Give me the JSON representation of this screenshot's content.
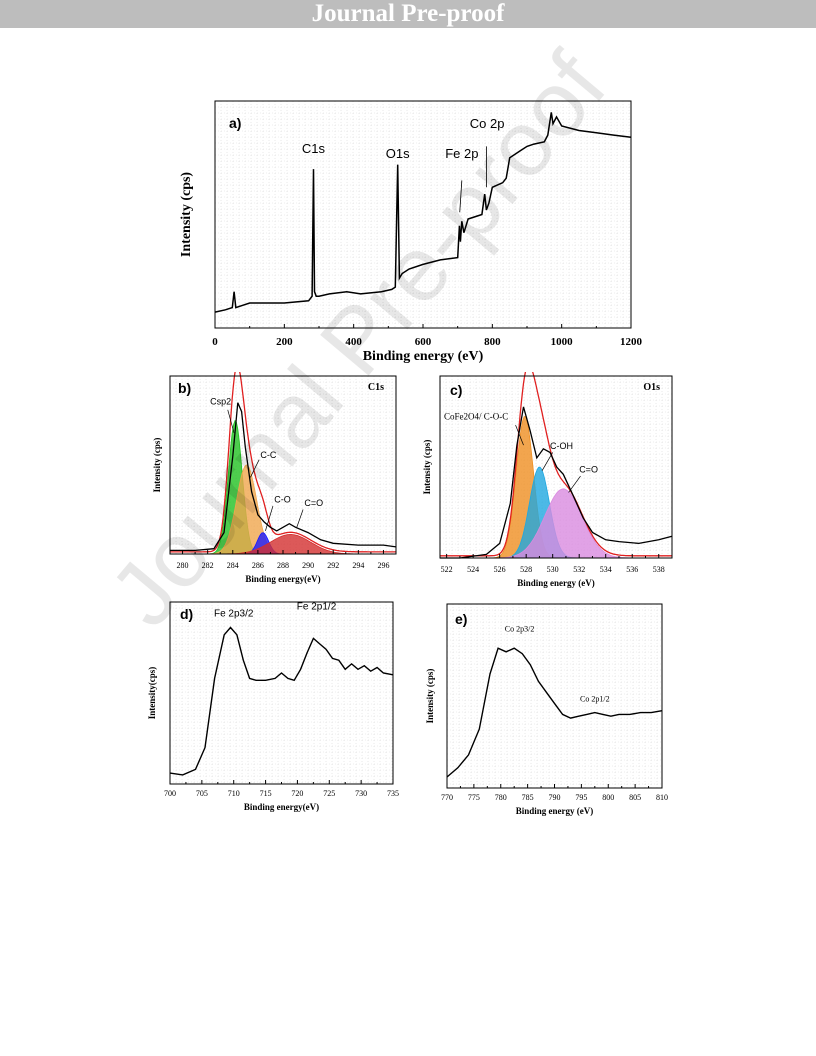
{
  "header": {
    "banner": "Journal Pre-proof"
  },
  "watermark": "Journal Pre-proof",
  "chart_data": [
    {
      "panel": "a)",
      "type": "line",
      "xlabel": "Binding energy (eV)",
      "ylabel": "Intensity (cps)",
      "xlim": [
        0,
        1200
      ],
      "ylim": [
        0,
        100
      ],
      "xticks": [
        "0",
        "200",
        "400",
        "600",
        "800",
        "1000",
        "1200"
      ],
      "x": [
        0,
        30,
        50,
        55,
        60,
        80,
        100,
        200,
        270,
        280,
        284,
        287,
        292,
        300,
        330,
        380,
        420,
        480,
        510,
        520,
        527,
        532,
        540,
        560,
        600,
        650,
        700,
        705,
        708,
        712,
        718,
        722,
        730,
        770,
        778,
        783,
        790,
        800,
        830,
        840,
        850,
        880,
        900,
        920,
        950,
        960,
        970,
        975,
        985,
        1000,
        1050,
        1100,
        1150,
        1200
      ],
      "y": [
        7,
        8,
        9,
        16,
        9,
        10,
        11,
        11,
        12,
        14,
        70,
        16,
        14,
        14,
        15,
        16,
        15,
        16,
        17,
        18,
        72,
        22,
        24,
        26,
        28,
        30,
        31,
        45,
        38,
        47,
        42,
        44,
        48,
        50,
        59,
        52,
        55,
        62,
        64,
        66,
        75,
        78,
        80,
        81,
        82,
        85,
        95,
        90,
        93,
        89,
        87,
        86,
        85,
        84
      ],
      "annotations": [
        "C1s",
        "O1s",
        "Fe 2p",
        "Co 2p"
      ]
    },
    {
      "panel": "b)",
      "title": "C1s",
      "type": "area",
      "xlabel": "Binding energy(eV)",
      "ylabel": "Intensity (cps)",
      "xlim": [
        279,
        297
      ],
      "ylim": [
        0,
        100
      ],
      "xticks": [
        "280",
        "282",
        "284",
        "286",
        "288",
        "290",
        "292",
        "294",
        "296"
      ],
      "envelope": {
        "x": [
          279,
          281,
          282.5,
          283.3,
          284,
          284.4,
          284.7,
          285,
          285.5,
          286,
          286.5,
          287,
          287.5,
          288,
          288.5,
          289,
          290,
          291,
          292,
          294,
          296,
          297
        ],
        "y": [
          2,
          2,
          3,
          12,
          55,
          85,
          80,
          60,
          35,
          22,
          18,
          15,
          13,
          15,
          17,
          15,
          12,
          8,
          6,
          5,
          5,
          4
        ]
      },
      "series": [
        {
          "name": "Csp2",
          "center": 284.2,
          "height": 75,
          "width": 0.55,
          "color": "#22c022"
        },
        {
          "name": "C-C",
          "center": 285.1,
          "height": 50,
          "width": 0.8,
          "color": "#f0a64e"
        },
        {
          "name": "C-O",
          "center": 286.4,
          "height": 12,
          "width": 0.45,
          "color": "#1a1aff"
        },
        {
          "name": "C=O",
          "center": 288.6,
          "height": 11,
          "width": 1.6,
          "color": "#d32f2f"
        }
      ],
      "annotations": [
        "Csp2",
        "C-C",
        "C-O",
        "C=O"
      ]
    },
    {
      "panel": "c)",
      "title": "O1s",
      "type": "area",
      "xlabel": "Binding energy (eV)",
      "ylabel": "Intensity (cps)",
      "xlim": [
        521.5,
        539
      ],
      "ylim": [
        0,
        100
      ],
      "xticks": [
        "522",
        "524",
        "526",
        "528",
        "530",
        "532",
        "534",
        "536",
        "538"
      ],
      "envelope": {
        "x": [
          521.5,
          523,
          525,
          526,
          526.8,
          527.3,
          527.8,
          528.3,
          528.8,
          529.3,
          529.8,
          530.3,
          530.8,
          531.5,
          532.3,
          533,
          534,
          535,
          536.5,
          538,
          539
        ],
        "y": [
          0,
          0,
          2,
          8,
          30,
          62,
          83,
          70,
          55,
          60,
          58,
          50,
          46,
          35,
          22,
          14,
          10,
          9,
          8,
          10,
          12
        ]
      },
      "series": [
        {
          "name": "CoFe2O4/ C-O-C",
          "center": 527.9,
          "height": 78,
          "width": 0.65,
          "color": "#ef8f22"
        },
        {
          "name": "C-OH",
          "center": 529.0,
          "height": 50,
          "width": 0.75,
          "color": "#1fa8e0"
        },
        {
          "name": "C=O",
          "center": 530.8,
          "height": 38,
          "width": 1.4,
          "color": "#d98be0"
        }
      ],
      "annotations": [
        "CoFe2O4/ C-O-C",
        "C-OH",
        "C=O"
      ]
    },
    {
      "panel": "d)",
      "type": "line",
      "xlabel": "Binding energy(eV)",
      "ylabel": "Intensity(cps)",
      "xlim": [
        700,
        735
      ],
      "ylim": [
        0,
        100
      ],
      "xticks": [
        "700",
        "705",
        "710",
        "715",
        "720",
        "725",
        "730",
        "735"
      ],
      "x": [
        700,
        702,
        704,
        705.5,
        707,
        708.5,
        709.5,
        710.5,
        711.5,
        712.5,
        713.5,
        715,
        716.5,
        717.5,
        718.5,
        719.5,
        720.5,
        721.5,
        722.5,
        723.5,
        724.5,
        725.5,
        726.5,
        727.5,
        728.5,
        729.5,
        730.5,
        731.5,
        732.5,
        733.5,
        735
      ],
      "y": [
        6,
        5,
        8,
        20,
        58,
        82,
        86,
        82,
        68,
        58,
        57,
        57,
        58,
        61,
        58,
        57,
        63,
        72,
        80,
        77,
        74,
        69,
        68,
        63,
        66,
        63,
        65,
        62,
        64,
        61,
        60
      ],
      "annotations": [
        "Fe 2p3/2",
        "Fe 2p1/2"
      ]
    },
    {
      "panel": "e)",
      "type": "line",
      "xlabel": "Binding energy (eV)",
      "ylabel": "Intensity (cps)",
      "xlim": [
        770,
        810
      ],
      "ylim": [
        0,
        100
      ],
      "xticks": [
        "770",
        "775",
        "780",
        "785",
        "790",
        "795",
        "800",
        "805",
        "810"
      ],
      "x": [
        770,
        772,
        774,
        776,
        778,
        779.5,
        781,
        782.5,
        784,
        785.5,
        787,
        788.5,
        790,
        791.5,
        793,
        794.5,
        796,
        797.5,
        799,
        800.5,
        802,
        804,
        806,
        808,
        810
      ],
      "y": [
        6,
        11,
        18,
        32,
        62,
        76,
        74,
        76,
        73,
        67,
        58,
        52,
        46,
        40,
        38,
        39,
        40,
        41,
        40,
        39,
        40,
        40,
        41,
        41,
        42
      ],
      "annotations": [
        "Co 2p3/2",
        "Co 2p1/2"
      ]
    }
  ]
}
